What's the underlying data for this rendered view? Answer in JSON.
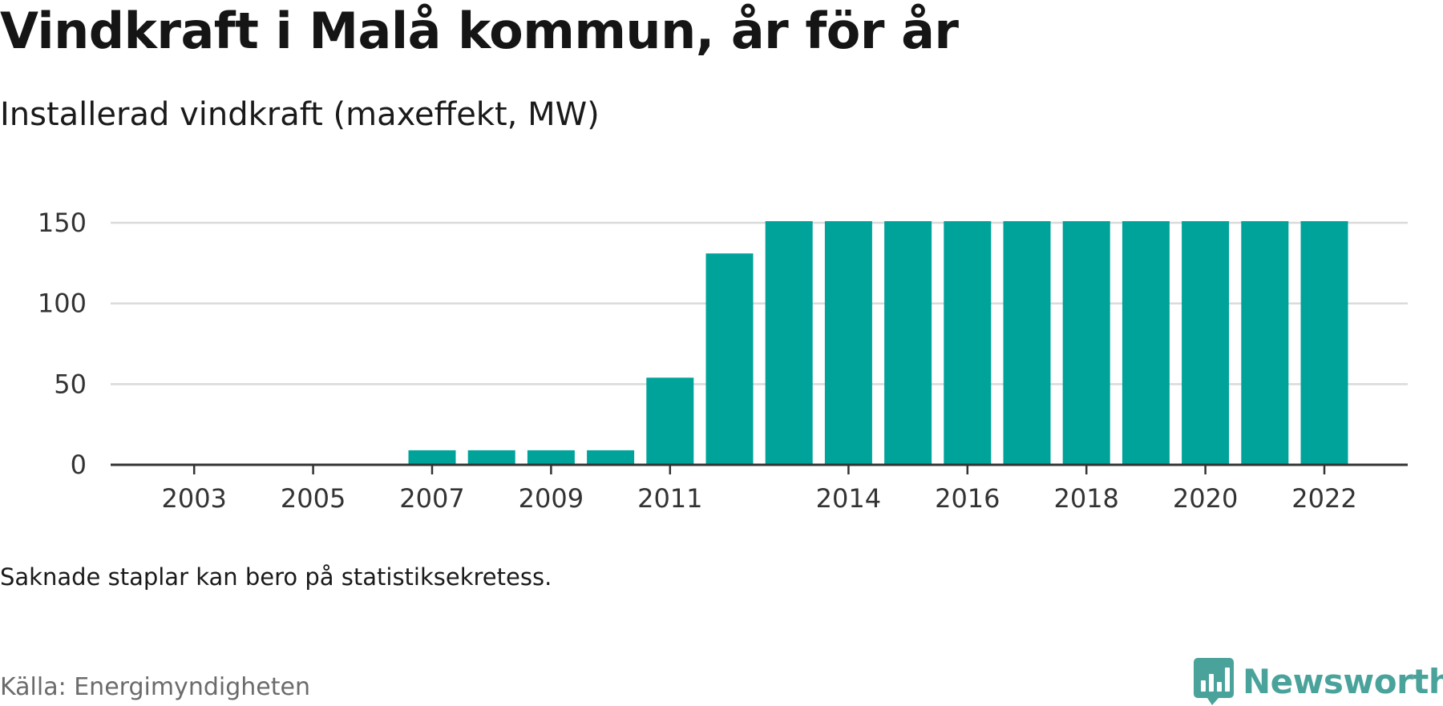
{
  "colors": {
    "bar": "#00a39a",
    "grid": "#d9d9d9",
    "axis": "#333333",
    "brand": "#4aa39b"
  },
  "chart_data": {
    "type": "bar",
    "title": "Vindkraft i Malå kommun, år för år",
    "subtitle": "Installerad vindkraft (maxeffekt, MW)",
    "categories": [
      2002,
      2003,
      2004,
      2005,
      2006,
      2007,
      2008,
      2009,
      2010,
      2011,
      2012,
      2013,
      2014,
      2015,
      2016,
      2017,
      2018,
      2019,
      2020,
      2021,
      2022
    ],
    "values": [
      null,
      null,
      null,
      null,
      null,
      9,
      9,
      9,
      9,
      54,
      131,
      151,
      151,
      151,
      151,
      151,
      151,
      151,
      151,
      151,
      151
    ],
    "x_tick_labels": [
      "2003",
      "2005",
      "2007",
      "2009",
      "2011",
      "2014",
      "2016",
      "2018",
      "2020",
      "2022"
    ],
    "y_ticks": [
      0,
      50,
      100,
      150
    ],
    "ylim": [
      0,
      150
    ],
    "grid": true,
    "legend": "none"
  },
  "footer": {
    "note": "Saknade staplar kan bero på statistiksekretess.",
    "source": "Källa: Energimyndigheten",
    "brand": "Newsworthy",
    "brand_icon": "newsworthy-logo-icon"
  }
}
